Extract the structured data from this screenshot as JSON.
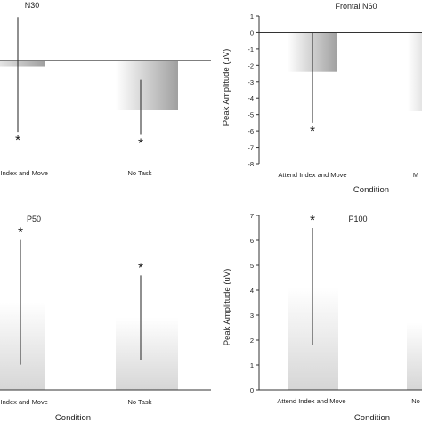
{
  "chart_data": [
    {
      "type": "bar",
      "title": "N30",
      "xlabel": "",
      "ylabel": "",
      "categories": [
        "nd Index and Move",
        "No Task"
      ],
      "values": [
        -0.4,
        -3.3
      ],
      "error_low": [
        -4.8,
        -5.0
      ],
      "error_high": [
        2.9,
        -1.3
      ],
      "significant": [
        "*",
        "*"
      ],
      "ylim": [
        -7,
        2.5
      ],
      "yticks": []
    },
    {
      "type": "bar",
      "title": "Frontal N60",
      "xlabel": "Condition",
      "ylabel": "Peak Amplitude (uV)",
      "categories": [
        "Attend Index and Move",
        "M"
      ],
      "values": [
        -2.4,
        -4.8
      ],
      "error_low": [
        -5.5,
        -4.8
      ],
      "error_high": [
        0,
        -4.8
      ],
      "significant": [
        "*",
        ""
      ],
      "ylim": [
        -8,
        1
      ],
      "yticks": [
        "1",
        "0",
        "-1",
        "-2",
        "-3",
        "-4",
        "-5",
        "-6",
        "-7",
        "-8"
      ]
    },
    {
      "type": "bar",
      "title": "P50",
      "xlabel": "",
      "ylabel": "",
      "categories": [
        "nd Index and Move",
        "No Task"
      ],
      "values": [
        5.2,
        4.3
      ],
      "error_low": [
        1.5,
        1.8
      ],
      "error_high": [
        8.9,
        6.8
      ],
      "significant": [
        "*",
        "*"
      ],
      "ylim": [
        0,
        10.2
      ],
      "yticks": []
    },
    {
      "type": "bar",
      "title": "P100",
      "xlabel": "Condition",
      "ylabel": "Peak Amplitude (uV)",
      "categories": [
        "Attend Index and Move",
        "No"
      ],
      "values": [
        4.1,
        2.7
      ],
      "error_low": [
        1.8,
        2.7
      ],
      "error_high": [
        6.5,
        2.7
      ],
      "significant": [
        "*",
        ""
      ],
      "ylim": [
        0,
        7
      ],
      "yticks": [
        "7",
        "6",
        "5",
        "4",
        "3",
        "2",
        "1",
        "0"
      ]
    }
  ],
  "panel_bottom_left_xlabel": "Condition",
  "panel_bottom_right_xlabel": "Condition",
  "colors": {
    "axis": "#333333",
    "bar_light": "#ffffff",
    "bar_dark": "#9a9a9a",
    "errorbar": "#222222"
  }
}
